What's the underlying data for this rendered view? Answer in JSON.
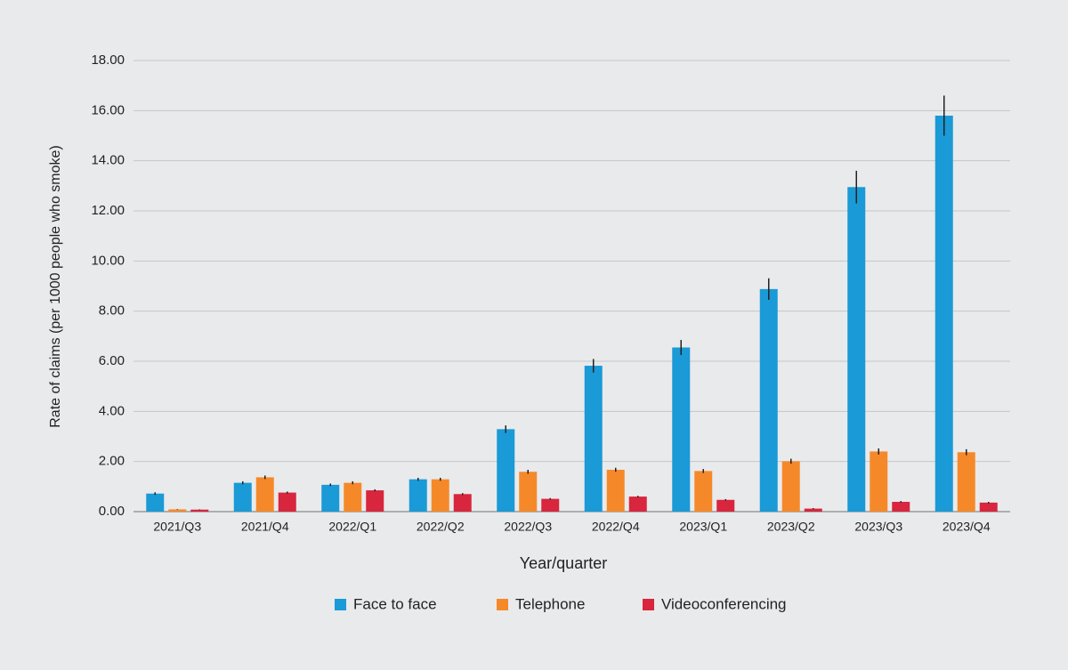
{
  "chart_data": {
    "type": "bar",
    "x_label": "Year/quarter",
    "y_label": "Rate of claims (per 1000 people who smoke)",
    "categories": [
      "2021/Q3",
      "2021/Q4",
      "2022/Q1",
      "2022/Q2",
      "2022/Q3",
      "2022/Q4",
      "2023/Q1",
      "2023/Q2",
      "2023/Q3",
      "2023/Q4"
    ],
    "series": [
      {
        "name": "Face to face",
        "color": "#1a9ad6",
        "values": [
          0.72,
          1.15,
          1.07,
          1.29,
          3.29,
          5.82,
          6.55,
          8.88,
          12.95,
          15.8
        ],
        "errors": [
          0.05,
          0.06,
          0.05,
          0.06,
          0.15,
          0.27,
          0.3,
          0.43,
          0.65,
          0.8
        ]
      },
      {
        "name": "Telephone",
        "color": "#f5892a",
        "values": [
          0.09,
          1.37,
          1.15,
          1.29,
          1.59,
          1.67,
          1.62,
          2.01,
          2.4,
          2.37
        ],
        "errors": [
          0.01,
          0.07,
          0.06,
          0.06,
          0.08,
          0.08,
          0.08,
          0.1,
          0.12,
          0.12
        ]
      },
      {
        "name": "Videoconferencing",
        "color": "#d7263d",
        "values": [
          0.08,
          0.76,
          0.85,
          0.7,
          0.51,
          0.6,
          0.47,
          0.12,
          0.39,
          0.36
        ],
        "errors": [
          0.01,
          0.04,
          0.04,
          0.04,
          0.03,
          0.03,
          0.03,
          0.02,
          0.03,
          0.03
        ]
      }
    ],
    "ylim": [
      0,
      18
    ],
    "yticks": [
      {
        "value": 0,
        "label": "0.00"
      },
      {
        "value": 2,
        "label": "2.00"
      },
      {
        "value": 4,
        "label": "4.00"
      },
      {
        "value": 6,
        "label": "6.00"
      },
      {
        "value": 8,
        "label": "8.00"
      },
      {
        "value": 10,
        "label": "10.00"
      },
      {
        "value": 12,
        "label": "12.00"
      },
      {
        "value": 14,
        "label": "14.00"
      },
      {
        "value": 16,
        "label": "16.00"
      },
      {
        "value": 18,
        "label": "18.00"
      }
    ],
    "grid": true,
    "legend": "bottom"
  }
}
